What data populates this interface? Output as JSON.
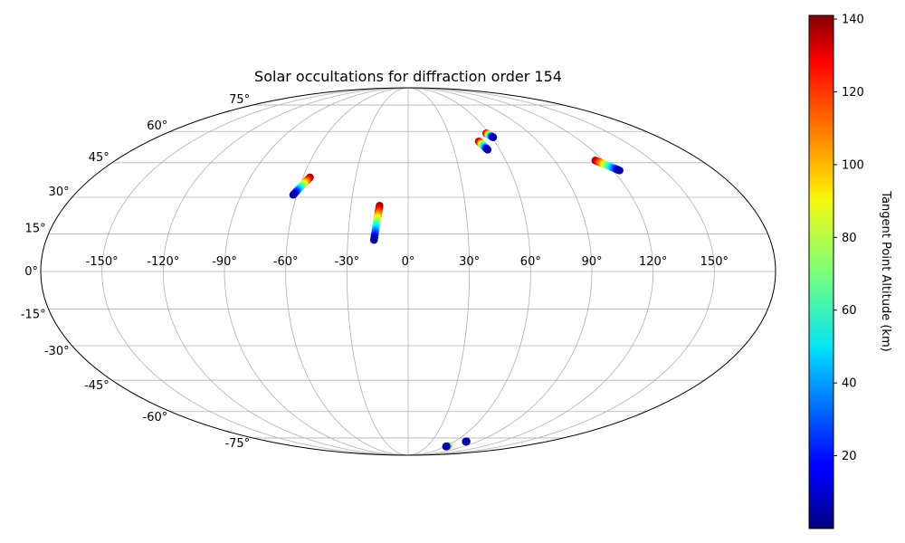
{
  "chart_data": {
    "type": "scatter",
    "projection": "mollweide",
    "title": "Solar occultations for diffraction order 154",
    "grid": true,
    "longitude_ticks": [
      -150,
      -120,
      -90,
      -60,
      -30,
      0,
      30,
      60,
      90,
      120,
      150
    ],
    "longitude_tick_labels": [
      "-150°",
      "-120°",
      "-90°",
      "-60°",
      "-30°",
      "0°",
      "30°",
      "60°",
      "90°",
      "120°",
      "150°"
    ],
    "latitude_ticks": [
      -75,
      -60,
      -45,
      -30,
      -15,
      0,
      15,
      30,
      45,
      60,
      75
    ],
    "latitude_tick_labels": [
      "-75°",
      "-60°",
      "-45°",
      "-30°",
      "-15°",
      "0°",
      "15°",
      "30°",
      "45°",
      "60°",
      "75°"
    ],
    "colorbar": {
      "label": "Tangent Point Altitude (km)",
      "colormap": "jet",
      "range": [
        0,
        141
      ],
      "ticks": [
        20,
        40,
        60,
        80,
        100,
        120,
        140
      ],
      "tick_labels": [
        "20",
        "40",
        "60",
        "80",
        "100",
        "120",
        "140"
      ]
    },
    "tracks": [
      {
        "lon_start": -62,
        "lat_start": 31,
        "lon_end": -56,
        "lat_end": 38.5,
        "alt_start": 5,
        "alt_end": 141
      },
      {
        "lon_start": -17,
        "lat_start": 12.5,
        "lon_end": -15,
        "lat_end": 26.5,
        "alt_start": 5,
        "alt_end": 141
      },
      {
        "lon_start": 52,
        "lat_start": 51,
        "lon_end": 49,
        "lat_end": 55,
        "alt_start": 5,
        "alt_end": 141
      },
      {
        "lon_start": 61,
        "lat_start": 57,
        "lon_end": 58,
        "lat_end": 59,
        "alt_start": 5,
        "alt_end": 141
      },
      {
        "lon_start": 124,
        "lat_start": 41.5,
        "lon_end": 115,
        "lat_end": 46,
        "alt_start": 5,
        "alt_end": 141
      },
      {
        "lon_start": 61,
        "lat_start": -81,
        "lon_end": 63,
        "lat_end": -80.6,
        "alt_start": 5,
        "alt_end": 110
      },
      {
        "lon_start": 75,
        "lat_start": -77.5,
        "lon_end": 75.2,
        "lat_end": -77.3,
        "alt_start": 5,
        "alt_end": 10
      }
    ]
  }
}
